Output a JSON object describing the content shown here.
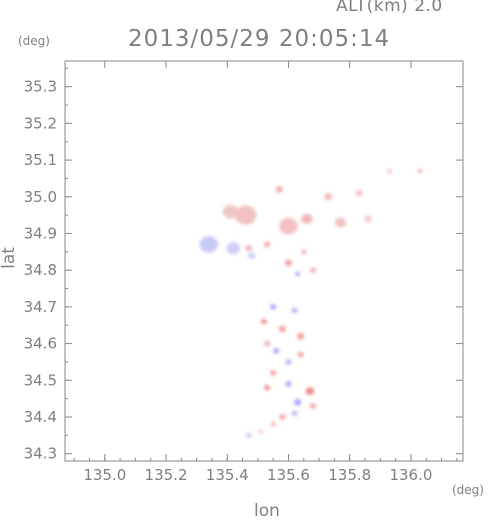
{
  "header": {
    "altitude_label": "ALT(km) 2.0",
    "timestamp": "2013/05/29 20:05:14"
  },
  "chart_data": {
    "type": "heatmap",
    "title": "2013/05/29 20:05:14",
    "xlabel": "lon",
    "ylabel": "lat",
    "x_unit": "(deg)",
    "y_unit": "(deg)",
    "xlim": [
      134.87,
      136.17
    ],
    "ylim": [
      34.28,
      35.37
    ],
    "x_ticks": [
      135.0,
      135.2,
      135.4,
      135.6,
      135.8,
      136.0
    ],
    "x_tick_labels": [
      "135.0",
      "135.2",
      "135.4",
      "135.6",
      "135.8",
      "136.0"
    ],
    "y_ticks": [
      34.3,
      34.4,
      34.5,
      34.6,
      34.7,
      34.8,
      34.9,
      35.0,
      35.1,
      35.2,
      35.3
    ],
    "y_tick_labels": [
      "34.3",
      "34.4",
      "34.5",
      "34.6",
      "34.7",
      "34.8",
      "34.9",
      "35.0",
      "35.1",
      "35.2",
      "35.3"
    ],
    "grid": false,
    "colors": {
      "positive": "#f08080",
      "positive_light": "#f8c8c8",
      "negative": "#8080f0",
      "negative_light": "#c8c8f8"
    },
    "cells": [
      {
        "lon": 135.46,
        "lat": 34.95,
        "r": 0.035,
        "v": 0.35
      },
      {
        "lon": 135.41,
        "lat": 34.96,
        "r": 0.025,
        "v": 0.3
      },
      {
        "lon": 135.6,
        "lat": 34.92,
        "r": 0.03,
        "v": 0.35
      },
      {
        "lon": 135.57,
        "lat": 35.02,
        "r": 0.012,
        "v": 0.5
      },
      {
        "lon": 135.66,
        "lat": 34.94,
        "r": 0.018,
        "v": 0.45
      },
      {
        "lon": 135.73,
        "lat": 35.0,
        "r": 0.013,
        "v": 0.4
      },
      {
        "lon": 135.77,
        "lat": 34.93,
        "r": 0.018,
        "v": 0.35
      },
      {
        "lon": 135.83,
        "lat": 35.01,
        "r": 0.012,
        "v": 0.3
      },
      {
        "lon": 135.86,
        "lat": 34.94,
        "r": 0.012,
        "v": 0.3
      },
      {
        "lon": 135.93,
        "lat": 35.07,
        "r": 0.008,
        "v": 0.3
      },
      {
        "lon": 136.03,
        "lat": 35.07,
        "r": 0.008,
        "v": 0.5
      },
      {
        "lon": 135.47,
        "lat": 34.86,
        "r": 0.012,
        "v": 0.4
      },
      {
        "lon": 135.53,
        "lat": 34.87,
        "r": 0.01,
        "v": 0.6
      },
      {
        "lon": 135.34,
        "lat": 34.87,
        "r": 0.03,
        "v": -0.3
      },
      {
        "lon": 135.42,
        "lat": 34.86,
        "r": 0.022,
        "v": -0.25
      },
      {
        "lon": 135.48,
        "lat": 34.84,
        "r": 0.012,
        "v": -0.25
      },
      {
        "lon": 135.6,
        "lat": 34.82,
        "r": 0.012,
        "v": 0.6
      },
      {
        "lon": 135.65,
        "lat": 34.85,
        "r": 0.008,
        "v": 0.6
      },
      {
        "lon": 135.63,
        "lat": 34.79,
        "r": 0.008,
        "v": -0.6
      },
      {
        "lon": 135.68,
        "lat": 34.8,
        "r": 0.01,
        "v": 0.5
      },
      {
        "lon": 135.52,
        "lat": 34.66,
        "r": 0.01,
        "v": 0.7
      },
      {
        "lon": 135.55,
        "lat": 34.7,
        "r": 0.01,
        "v": -0.6
      },
      {
        "lon": 135.58,
        "lat": 34.64,
        "r": 0.012,
        "v": 0.6
      },
      {
        "lon": 135.62,
        "lat": 34.69,
        "r": 0.01,
        "v": -0.5
      },
      {
        "lon": 135.64,
        "lat": 34.62,
        "r": 0.012,
        "v": 0.6
      },
      {
        "lon": 135.56,
        "lat": 34.58,
        "r": 0.01,
        "v": -0.6
      },
      {
        "lon": 135.53,
        "lat": 34.6,
        "r": 0.01,
        "v": 0.5
      },
      {
        "lon": 135.6,
        "lat": 34.55,
        "r": 0.01,
        "v": -0.5
      },
      {
        "lon": 135.64,
        "lat": 34.57,
        "r": 0.01,
        "v": 0.6
      },
      {
        "lon": 135.55,
        "lat": 34.52,
        "r": 0.01,
        "v": 0.6
      },
      {
        "lon": 135.53,
        "lat": 34.48,
        "r": 0.01,
        "v": 0.7
      },
      {
        "lon": 135.6,
        "lat": 34.49,
        "r": 0.01,
        "v": -0.6
      },
      {
        "lon": 135.67,
        "lat": 34.47,
        "r": 0.014,
        "v": 0.8
      },
      {
        "lon": 135.63,
        "lat": 34.44,
        "r": 0.012,
        "v": -0.6
      },
      {
        "lon": 135.68,
        "lat": 34.43,
        "r": 0.01,
        "v": 0.6
      },
      {
        "lon": 135.58,
        "lat": 34.4,
        "r": 0.01,
        "v": 0.6
      },
      {
        "lon": 135.62,
        "lat": 34.41,
        "r": 0.01,
        "v": -0.4
      },
      {
        "lon": 135.55,
        "lat": 34.38,
        "r": 0.008,
        "v": 0.5
      },
      {
        "lon": 135.47,
        "lat": 34.35,
        "r": 0.01,
        "v": -0.25
      },
      {
        "lon": 135.51,
        "lat": 34.36,
        "r": 0.008,
        "v": 0.3
      }
    ]
  }
}
